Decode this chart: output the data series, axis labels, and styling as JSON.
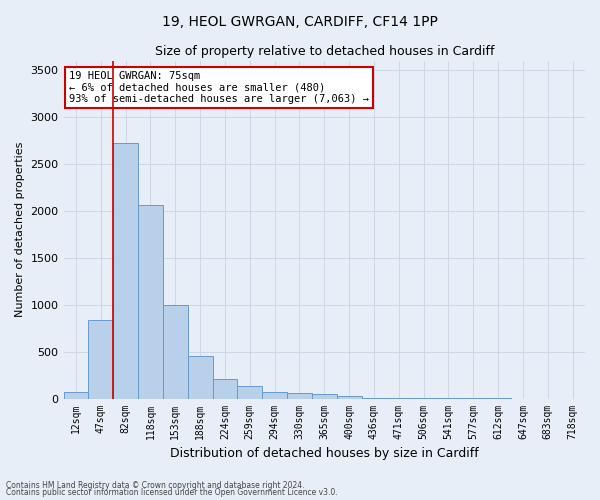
{
  "title1": "19, HEOL GWRGAN, CARDIFF, CF14 1PP",
  "title2": "Size of property relative to detached houses in Cardiff",
  "xlabel": "Distribution of detached houses by size in Cardiff",
  "ylabel": "Number of detached properties",
  "categories": [
    "12sqm",
    "47sqm",
    "82sqm",
    "118sqm",
    "153sqm",
    "188sqm",
    "224sqm",
    "259sqm",
    "294sqm",
    "330sqm",
    "365sqm",
    "400sqm",
    "436sqm",
    "471sqm",
    "506sqm",
    "541sqm",
    "577sqm",
    "612sqm",
    "647sqm",
    "683sqm",
    "718sqm"
  ],
  "values": [
    75,
    840,
    2720,
    2060,
    1000,
    450,
    210,
    130,
    75,
    60,
    50,
    30,
    10,
    5,
    3,
    2,
    1,
    1,
    0,
    0,
    0
  ],
  "bar_color": "#b8d0ea",
  "bar_edge_color": "#6699cc",
  "grid_color": "#c8d4e4",
  "background_color": "#e8eef8",
  "vline_color": "#cc0000",
  "annotation_text": "19 HEOL GWRGAN: 75sqm\n← 6% of detached houses are smaller (480)\n93% of semi-detached houses are larger (7,063) →",
  "annotation_box_color": "#ffffff",
  "annotation_box_edge": "#cc0000",
  "footnote1": "Contains HM Land Registry data © Crown copyright and database right 2024.",
  "footnote2": "Contains public sector information licensed under the Open Government Licence v3.0.",
  "ylim": [
    0,
    3600
  ],
  "yticks": [
    0,
    500,
    1000,
    1500,
    2000,
    2500,
    3000,
    3500
  ]
}
